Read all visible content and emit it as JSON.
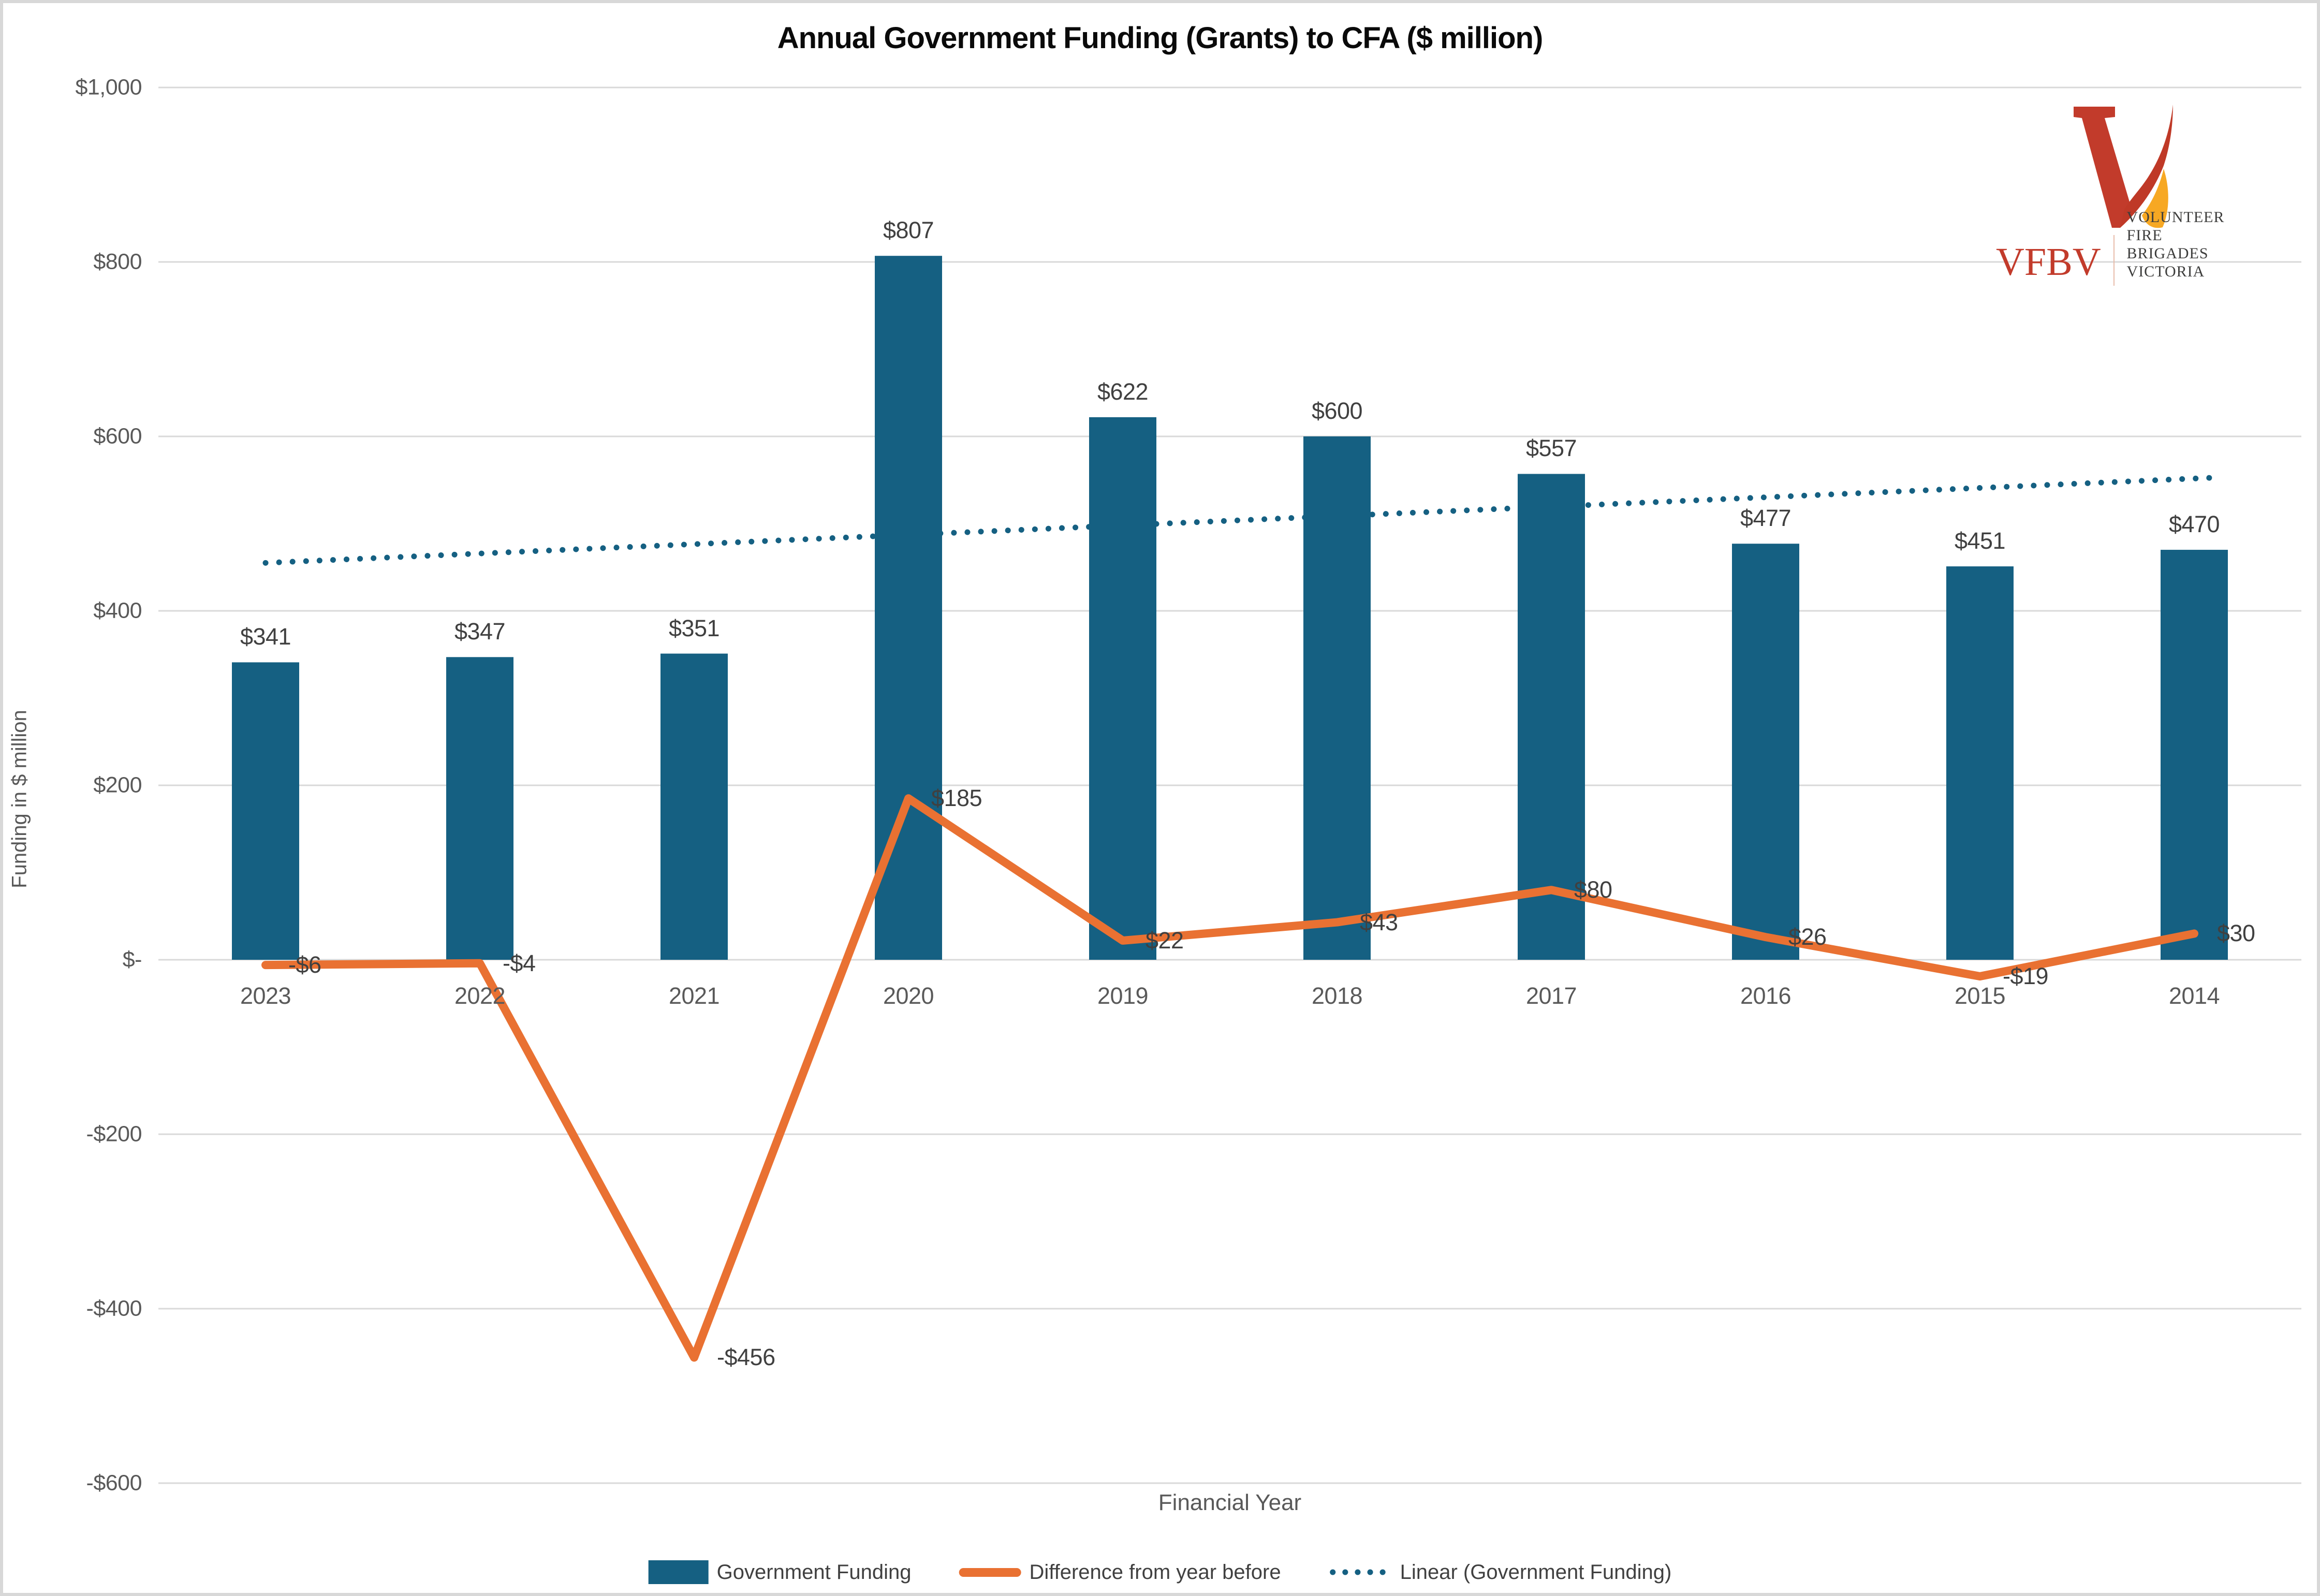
{
  "title": "Annual Government Funding (Grants) to CFA ($ million)",
  "y_axis": {
    "title": "Funding in $ million",
    "ticks": [
      {
        "label": "$1,000",
        "value": 1000
      },
      {
        "label": "$800",
        "value": 800
      },
      {
        "label": "$600",
        "value": 600
      },
      {
        "label": "$400",
        "value": 400
      },
      {
        "label": "$200",
        "value": 200
      },
      {
        "label": "$-",
        "value": 0
      },
      {
        "label": "-$200",
        "value": -200
      },
      {
        "label": "-$400",
        "value": -400
      },
      {
        "label": "-$600",
        "value": -600
      }
    ]
  },
  "x_axis": {
    "title": "Financial Year"
  },
  "legend": [
    {
      "label": "Government Funding",
      "marker": "bar-swatch",
      "color": "#156082"
    },
    {
      "label": "Difference from year before",
      "marker": "line-swatch",
      "color": "#E97132"
    },
    {
      "label": "Linear (Government Funding)",
      "marker": "dotted-line-swatch",
      "color": "#156082"
    }
  ],
  "logo": {
    "acronym": "VFBV",
    "name_line1": "VOLUNTEER FIRE",
    "name_line2": "BRIGADES VICTORIA",
    "mark": "v-flame-icon",
    "colors": {
      "red": "#C23B2B",
      "flame_orange": "#F7A823",
      "text_gray": "#3D3D3C"
    }
  },
  "chart_data": {
    "type": "bar",
    "categories": [
      "2023",
      "2022",
      "2021",
      "2020",
      "2019",
      "2018",
      "2017",
      "2016",
      "2015",
      "2014"
    ],
    "series": [
      {
        "name": "Government Funding",
        "type": "bar",
        "color": "#156082",
        "values": [
          341,
          347,
          351,
          807,
          622,
          600,
          557,
          477,
          451,
          470
        ],
        "labels": [
          "$341",
          "$347",
          "$351",
          "$807",
          "$622",
          "$600",
          "$557",
          "$477",
          "$451",
          "$470"
        ]
      },
      {
        "name": "Difference from year before",
        "type": "line",
        "color": "#E97132",
        "values": [
          -6,
          -4,
          -456,
          185,
          22,
          43,
          80,
          26,
          -19,
          30
        ],
        "labels": [
          "-$6",
          "-$4",
          "-$456",
          "$185",
          "$22",
          "$43",
          "$80",
          "$26",
          "-$19",
          "$30"
        ]
      },
      {
        "name": "Linear (Government Funding)",
        "type": "trendline",
        "style": "dotted",
        "color": "#156082",
        "start_value": 455,
        "end_value": 553
      }
    ],
    "ylim": [
      -600,
      1000
    ],
    "y_tick_step": 200,
    "grid": true,
    "legend_position": "bottom",
    "gridline_color": "#D9D9D9"
  }
}
